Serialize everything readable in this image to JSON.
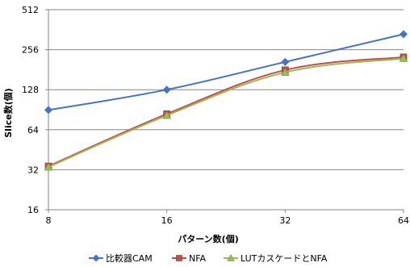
{
  "chart_data": {
    "type": "line",
    "x": [
      8,
      16,
      32,
      64
    ],
    "x_tick_labels": [
      "8",
      "16",
      "32",
      "64"
    ],
    "y_tick_labels": [
      "16",
      "32",
      "64",
      "128",
      "256",
      "512"
    ],
    "y_ticks": [
      16,
      32,
      64,
      128,
      256,
      512
    ],
    "ylim": [
      16,
      512
    ],
    "xlim": [
      8,
      64
    ],
    "x_scale": "log2",
    "y_scale": "log2",
    "xlabel": "パターン数(個)",
    "ylabel": "Slice数(個)",
    "grid": "horizontal",
    "legend_position": "bottom",
    "series": [
      {
        "name": "比較器CAM",
        "values": [
          90,
          128,
          207,
          335
        ],
        "color": "#4472C4",
        "marker": "diamond"
      },
      {
        "name": "NFA",
        "values": [
          34,
          84,
          180,
          225
        ],
        "color": "#C0504D",
        "marker": "square"
      },
      {
        "name": "LUTカスケードとNFA",
        "values": [
          33.5,
          82,
          173,
          220
        ],
        "color": "#9BBB59",
        "marker": "triangle"
      }
    ]
  }
}
